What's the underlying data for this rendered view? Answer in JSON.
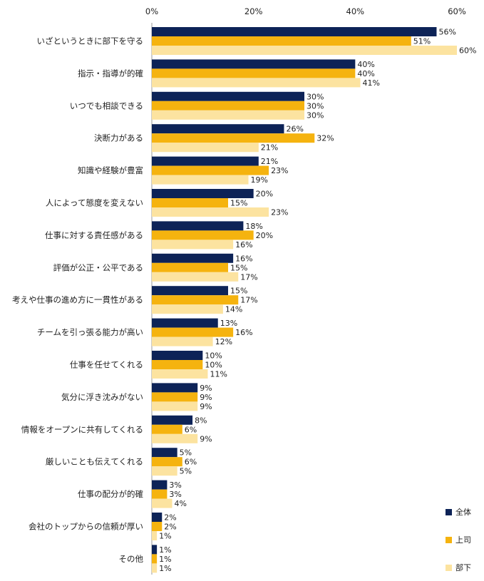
{
  "chart_data": {
    "type": "bar",
    "orientation": "horizontal",
    "xlim": [
      0,
      60
    ],
    "ticks": [
      0,
      20,
      40,
      60
    ],
    "tick_labels": [
      "0%",
      "20%",
      "40%",
      "60%"
    ],
    "grid": false,
    "legend_position": "bottom-right",
    "categories": [
      "いざというときに部下を守る",
      "指示・指導が的確",
      "いつでも相談できる",
      "決断力がある",
      "知識や経験が豊富",
      "人によって態度を変えない",
      "仕事に対する責任感がある",
      "評価が公正・公平である",
      "考えや仕事の進め方に一貫性がある",
      "チームを引っ張る能力が高い",
      "仕事を任せてくれる",
      "気分に浮き沈みがない",
      "情報をオープンに共有してくれる",
      "厳しいことも伝えてくれる",
      "仕事の配分が的確",
      "会社のトップからの信頼が厚い",
      "その他"
    ],
    "series": [
      {
        "name": "全体",
        "color": "#0d2357",
        "values": [
          56,
          40,
          30,
          26,
          21,
          20,
          18,
          16,
          15,
          13,
          10,
          9,
          8,
          5,
          3,
          2,
          1
        ],
        "labels": [
          "56%",
          "40%",
          "30%",
          "26%",
          "21%",
          "20%",
          "18%",
          "16%",
          "15%",
          "13%",
          "10%",
          "9%",
          "8%",
          "5%",
          "3%",
          "2%",
          "1%"
        ]
      },
      {
        "name": "上司",
        "color": "#f5b30f",
        "values": [
          51,
          40,
          30,
          32,
          23,
          15,
          20,
          15,
          17,
          16,
          10,
          9,
          6,
          6,
          3,
          2,
          1
        ],
        "labels": [
          "51%",
          "40%",
          "30%",
          "32%",
          "23%",
          "15%",
          "20%",
          "15%",
          "17%",
          "16%",
          "10%",
          "9%",
          "6%",
          "6%",
          "3%",
          "2%",
          "1%"
        ]
      },
      {
        "name": "部下",
        "color": "#fce3a0",
        "values": [
          60,
          41,
          30,
          21,
          19,
          23,
          16,
          17,
          14,
          12,
          11,
          9,
          9,
          5,
          4,
          1,
          1
        ],
        "labels": [
          "60%",
          "41%",
          "30%",
          "21%",
          "19%",
          "23%",
          "16%",
          "17%",
          "14%",
          "12%",
          "11%",
          "9%",
          "9%",
          "5%",
          "4%",
          "1%",
          "1%"
        ]
      }
    ]
  }
}
